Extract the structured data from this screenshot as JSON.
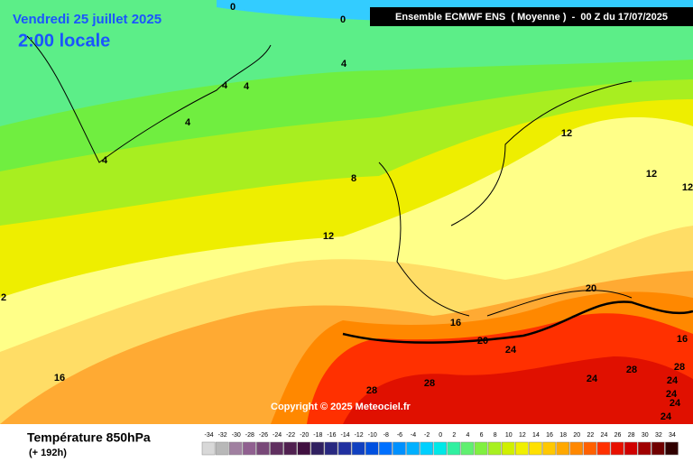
{
  "header": {
    "date": "Vendredi 25 juillet 2025",
    "time": "2:00 locale",
    "model": "Ensemble ECMWF ENS  ( Moyenne )  -  00 Z du 17/07/2025"
  },
  "copyright": "Copyright © 2025 Meteociel.fr",
  "legend": {
    "title": "Température 850hPa",
    "lead": "(+ 192h)",
    "values": [
      -34,
      -32,
      -30,
      -28,
      -26,
      -24,
      -22,
      -20,
      -18,
      -16,
      -14,
      -12,
      -10,
      -8,
      -6,
      -4,
      -2,
      0,
      2,
      4,
      6,
      8,
      10,
      12,
      14,
      16,
      18,
      20,
      22,
      24,
      26,
      28,
      30,
      32,
      34
    ],
    "colors": [
      "#d8d8d8",
      "#b8b8b8",
      "#a080a0",
      "#906090",
      "#784878",
      "#603060",
      "#502050",
      "#401040",
      "#302060",
      "#282880",
      "#2030a0",
      "#1040c0",
      "#0050e0",
      "#0070ff",
      "#0090ff",
      "#00b0ff",
      "#00d0ff",
      "#00e8e8",
      "#30f0a0",
      "#60f070",
      "#80f040",
      "#a8f020",
      "#d0f000",
      "#f0f000",
      "#ffe000",
      "#ffc800",
      "#ffa800",
      "#ff8800",
      "#ff6000",
      "#ff3000",
      "#e81000",
      "#d00000",
      "#a00000",
      "#700000",
      "#300000"
    ]
  },
  "contour_labels": [
    0,
    0,
    4,
    4,
    4,
    4,
    4,
    8,
    12,
    12,
    12,
    12,
    16,
    16,
    16,
    20,
    20,
    24,
    24,
    24,
    24,
    24,
    24,
    28,
    28,
    28,
    28,
    2
  ]
}
